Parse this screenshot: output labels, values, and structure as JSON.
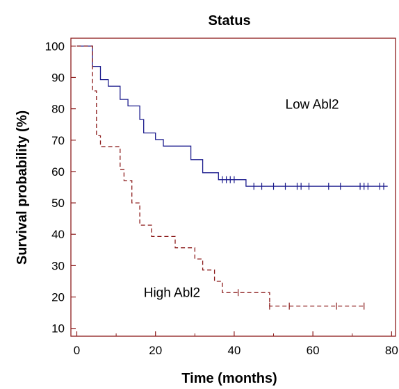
{
  "chart_data": {
    "type": "line",
    "title": "Status",
    "xlabel": "Time (months)",
    "ylabel": "Survival probability (%)",
    "xlim": [
      -1.5,
      81
    ],
    "ylim": [
      7.5,
      102.5
    ],
    "xticks": [
      0,
      20,
      40,
      60,
      80
    ],
    "yticks": [
      10,
      20,
      30,
      40,
      50,
      60,
      70,
      80,
      90,
      100
    ],
    "minor_xticks": [
      10,
      30,
      50,
      70
    ],
    "grid": false,
    "colors": {
      "axis": "#8b1a1a",
      "low": "#1a1a8c",
      "high": "#8b1a1a"
    },
    "series": [
      {
        "name": "Low Abl2",
        "style": "solid",
        "step_points": [
          [
            0,
            100
          ],
          [
            4,
            100
          ],
          [
            4,
            93.5
          ],
          [
            6,
            93.5
          ],
          [
            6,
            89.3
          ],
          [
            8,
            89.3
          ],
          [
            8,
            87.2
          ],
          [
            11,
            87.2
          ],
          [
            11,
            83
          ],
          [
            13,
            83
          ],
          [
            13,
            80.9
          ],
          [
            16,
            80.9
          ],
          [
            16,
            76.6
          ],
          [
            17,
            76.6
          ],
          [
            17,
            72.3
          ],
          [
            20,
            72.3
          ],
          [
            20,
            70.2
          ],
          [
            22,
            70.2
          ],
          [
            22,
            68.1
          ],
          [
            29,
            68.1
          ],
          [
            29,
            63.8
          ],
          [
            32,
            63.8
          ],
          [
            32,
            59.6
          ],
          [
            36,
            59.6
          ],
          [
            36,
            57.4
          ],
          [
            43,
            57.4
          ],
          [
            43,
            55.3
          ],
          [
            79,
            55.3
          ]
        ],
        "censor_times": [
          37,
          38,
          39,
          40,
          45,
          47,
          50,
          53,
          56,
          57,
          59,
          64,
          67,
          72,
          73,
          74,
          77,
          78
        ]
      },
      {
        "name": "High Abl2",
        "style": "dashed",
        "step_points": [
          [
            0,
            100
          ],
          [
            4,
            100
          ],
          [
            4,
            85.7
          ],
          [
            5,
            85.7
          ],
          [
            5,
            71.4
          ],
          [
            6,
            71.4
          ],
          [
            6,
            67.9
          ],
          [
            11,
            67.9
          ],
          [
            11,
            60.7
          ],
          [
            12,
            60.7
          ],
          [
            12,
            57.1
          ],
          [
            14,
            57.1
          ],
          [
            14,
            50
          ],
          [
            16,
            50
          ],
          [
            16,
            42.9
          ],
          [
            19,
            42.9
          ],
          [
            19,
            39.3
          ],
          [
            25,
            39.3
          ],
          [
            25,
            35.7
          ],
          [
            30,
            35.7
          ],
          [
            30,
            32.1
          ],
          [
            32,
            32.1
          ],
          [
            32,
            28.6
          ],
          [
            35,
            28.6
          ],
          [
            35,
            25
          ],
          [
            37,
            25
          ],
          [
            37,
            21.4
          ],
          [
            49,
            21.4
          ],
          [
            49,
            17.1
          ],
          [
            73,
            17.1
          ]
        ],
        "censor_times": [
          41,
          49,
          54,
          66,
          73
        ]
      }
    ],
    "annotations": [
      {
        "text": "Low Abl2",
        "x": 53,
        "y": 80
      },
      {
        "text": "High Abl2",
        "x": 17,
        "y": 20
      }
    ]
  }
}
